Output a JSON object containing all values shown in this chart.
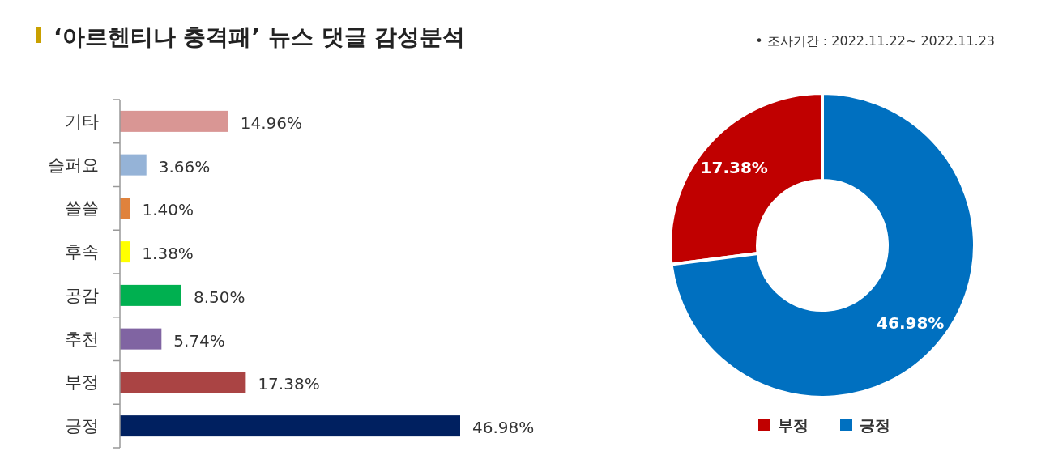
{
  "chart_data": [
    {
      "type": "bar",
      "orientation": "horizontal",
      "title": "‘아르헨티나 충격패’ 뉴스 댓글 감성분석",
      "categories": [
        "기타",
        "슬퍼요",
        "쓸쓸",
        "후속",
        "공감",
        "추천",
        "부정",
        "긍정"
      ],
      "values": [
        14.96,
        3.66,
        1.4,
        1.38,
        8.5,
        5.74,
        17.38,
        46.98
      ],
      "value_labels": [
        "14.96%",
        "3.66%",
        "1.40%",
        "1.38%",
        "8.50%",
        "5.74%",
        "17.38%",
        "46.98%"
      ],
      "colors": [
        "#d99694",
        "#95b3d7",
        "#e0823c",
        "#ffff00",
        "#00b050",
        "#8064a2",
        "#aa4444",
        "#002060"
      ]
    },
    {
      "type": "donut",
      "subtitle": "• 조사기간 : 2022.11.22~ 2022.11.23",
      "categories": [
        "부정",
        "긍정"
      ],
      "values": [
        17.38,
        46.98
      ],
      "value_labels": [
        "17.38%",
        "46.98%"
      ],
      "colors": [
        "#c00000",
        "#0070c0"
      ],
      "legend": "bottom"
    }
  ]
}
